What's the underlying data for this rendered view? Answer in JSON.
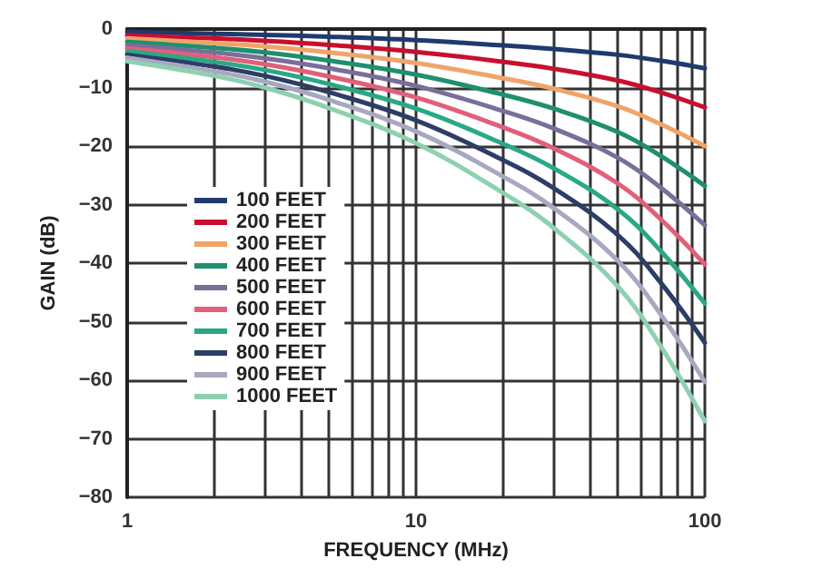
{
  "chart_data": {
    "type": "line",
    "xlabel": "FREQUENCY (MHz)",
    "ylabel": "GAIN (dB)",
    "log": "x",
    "grid": true,
    "legend": "left",
    "marker": "none",
    "line_style": "solid",
    "xlim": [
      1,
      100
    ],
    "xticks": [
      1,
      {
        "value": 2,
        "label": null
      },
      {
        "value": 3,
        "label": null
      },
      {
        "value": 4,
        "label": null
      },
      {
        "value": 5,
        "label": null
      },
      {
        "value": 6,
        "label": null
      },
      {
        "value": 7,
        "label": null
      },
      {
        "value": 8,
        "label": null
      },
      {
        "value": 9,
        "label": null
      },
      10,
      {
        "value": 20,
        "label": null
      },
      {
        "value": 30,
        "label": null
      },
      {
        "value": 40,
        "label": null
      },
      {
        "value": 50,
        "label": null
      },
      {
        "value": 60,
        "label": null
      },
      {
        "value": 70,
        "label": null
      },
      {
        "value": 80,
        "label": null
      },
      {
        "value": 90,
        "label": null
      },
      100
    ],
    "ylim": [
      -80,
      0
    ],
    "yticks": [
      -80,
      -70,
      -60,
      -50,
      -40,
      -30,
      -20,
      -10,
      0
    ],
    "x": [
      1,
      2,
      3,
      5,
      10,
      20,
      30,
      50,
      70,
      100
    ],
    "series": [
      {
        "name": "100 FEET",
        "color": "#1f3a6e",
        "values": [
          -0.5,
          -0.8,
          -1,
          -1.3,
          -1.9,
          -2.8,
          -3.4,
          -4.4,
          -5.4,
          -6.7
        ]
      },
      {
        "name": "200 FEET",
        "color": "#c8102e",
        "values": [
          -1.1,
          -1.6,
          -2,
          -2.7,
          -3.9,
          -5.6,
          -6.8,
          -8.8,
          -10.8,
          -13.4
        ]
      },
      {
        "name": "300 FEET",
        "color": "#f0a46a",
        "values": [
          -1.6,
          -2.4,
          -3,
          -4,
          -5.8,
          -8.4,
          -10.2,
          -13.2,
          -16.2,
          -20
        ]
      },
      {
        "name": "400 FEET",
        "color": "#1f8f6f",
        "values": [
          -2.2,
          -3.2,
          -4,
          -5.4,
          -7.8,
          -11.2,
          -13.6,
          -17.6,
          -21.6,
          -26.8
        ]
      },
      {
        "name": "500 FEET",
        "color": "#7a6e9a",
        "values": [
          -2.7,
          -4,
          -5,
          -6.7,
          -9.7,
          -14,
          -17,
          -22,
          -27,
          -33.5
        ]
      },
      {
        "name": "600 FEET",
        "color": "#e0607a",
        "values": [
          -3.3,
          -4.8,
          -6,
          -8.1,
          -11.7,
          -16.8,
          -20.4,
          -26.4,
          -32.4,
          -40.2
        ]
      },
      {
        "name": "700 FEET",
        "color": "#2aa886",
        "values": [
          -3.8,
          -5.6,
          -7,
          -9.4,
          -13.6,
          -19.6,
          -23.8,
          -30.8,
          -37.8,
          -46.9
        ]
      },
      {
        "name": "800 FEET",
        "color": "#2c3e66",
        "values": [
          -4.4,
          -6.4,
          -8,
          -10.8,
          -15.6,
          -22.4,
          -27.2,
          -35.2,
          -43.2,
          -53.6
        ]
      },
      {
        "name": "900 FEET",
        "color": "#a8a8c0",
        "values": [
          -4.9,
          -7.2,
          -9,
          -12.1,
          -17.5,
          -25.2,
          -30.6,
          -39.6,
          -48.6,
          -60.3
        ]
      },
      {
        "name": "1000 FEET",
        "color": "#8fd0b0",
        "values": [
          -5.5,
          -8,
          -10,
          -13.5,
          -19.5,
          -28,
          -34,
          -44,
          -54,
          -67
        ]
      }
    ]
  }
}
